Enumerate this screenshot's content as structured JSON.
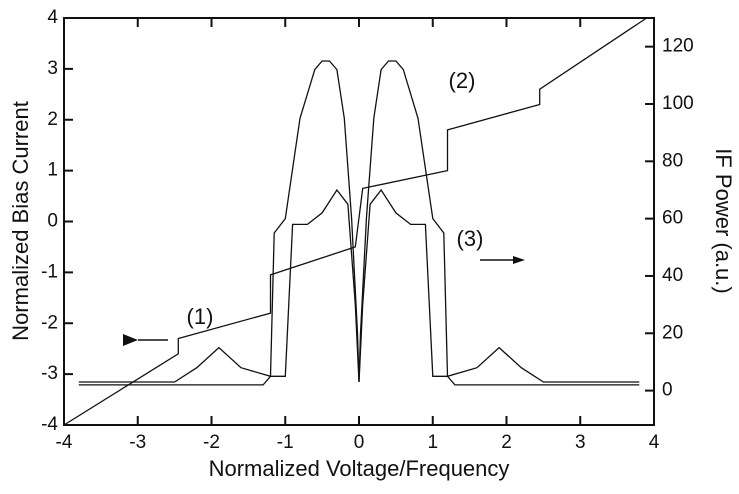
{
  "chart_data": {
    "type": "line",
    "xlabel": "Normalized Voltage/Frequency",
    "ylabel": "Normalized Bias Current",
    "y2label": "IF Power (a.u.)",
    "xlim": [
      -4,
      4
    ],
    "ylim": [
      -4,
      4
    ],
    "y2lim": [
      -12,
      130
    ],
    "xticks": [
      -4,
      -3,
      -2,
      -1,
      0,
      1,
      2,
      3,
      4
    ],
    "yticks": [
      -4,
      -3,
      -2,
      -1,
      0,
      1,
      2,
      3,
      4
    ],
    "y2ticks": [
      0,
      20,
      40,
      60,
      80,
      100,
      120
    ],
    "annotations": [
      "(1)",
      "(2)",
      "(3)"
    ],
    "series": [
      {
        "name": "(1)",
        "color": "#111111",
        "axis": "y",
        "x": [
          -4,
          -2.45,
          -2.45,
          -1.2,
          -1.2,
          -0.05,
          0.05,
          1.2,
          1.2,
          2.45,
          2.45,
          3.9
        ],
        "values": [
          -4,
          -2.6,
          -2.3,
          -1.8,
          -1.05,
          -0.5,
          0.65,
          1.0,
          1.8,
          2.3,
          2.6,
          4
        ]
      },
      {
        "name": "(2)",
        "color": "#111111",
        "axis": "y2",
        "x": [
          -3.8,
          -3.0,
          -2.0,
          -1.3,
          -1.2,
          -1.15,
          -1.0,
          -0.8,
          -0.6,
          -0.5,
          -0.4,
          -0.3,
          -0.2,
          -0.1,
          -0.02,
          0,
          0.02,
          0.1,
          0.2,
          0.3,
          0.4,
          0.5,
          0.6,
          0.8,
          1.0,
          1.15,
          1.2,
          1.3,
          2.0,
          3.0,
          3.8
        ],
        "values": [
          2,
          2,
          2,
          2,
          5,
          55,
          60,
          95,
          112,
          115,
          115,
          112,
          95,
          60,
          20,
          3,
          20,
          60,
          95,
          112,
          115,
          115,
          112,
          95,
          60,
          55,
          5,
          2,
          2,
          2,
          2
        ]
      },
      {
        "name": "(3)",
        "color": "#111111",
        "axis": "y2",
        "x": [
          -3.8,
          -2.5,
          -2.2,
          -1.9,
          -1.6,
          -1.2,
          -1.1,
          -1.0,
          -0.9,
          -0.7,
          -0.5,
          -0.3,
          -0.15,
          -0.05,
          0,
          0.05,
          0.15,
          0.3,
          0.5,
          0.7,
          0.9,
          1.0,
          1.1,
          1.2,
          1.6,
          1.9,
          2.2,
          2.5,
          3.8
        ],
        "values": [
          3,
          3,
          8,
          15,
          8,
          5,
          5,
          5,
          58,
          58,
          62,
          70,
          65,
          30,
          3,
          30,
          65,
          70,
          62,
          58,
          58,
          5,
          5,
          5,
          8,
          15,
          8,
          3,
          3
        ]
      }
    ]
  }
}
